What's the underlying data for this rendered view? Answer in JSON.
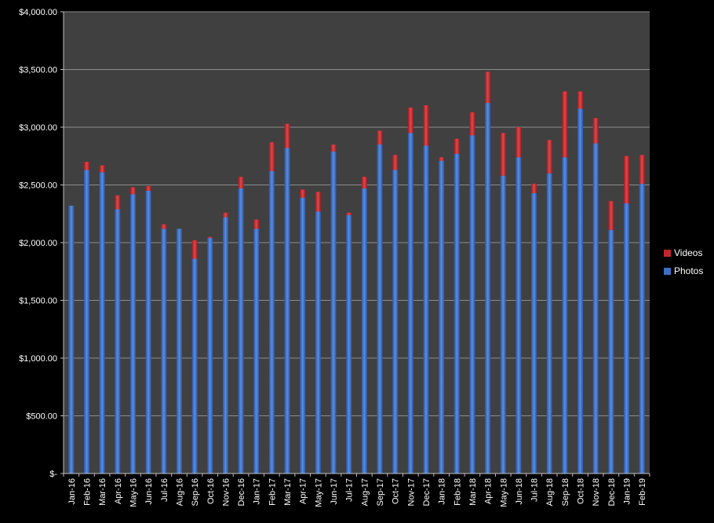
{
  "chart_data": {
    "type": "bar",
    "stacked": true,
    "title": "",
    "xlabel": "",
    "ylabel": "",
    "ylim": [
      0,
      4000
    ],
    "yticks": [
      0,
      500,
      1000,
      1500,
      2000,
      2500,
      3000,
      3500,
      4000
    ],
    "ytick_labels": [
      "$-",
      "$500.00",
      "$1,000.00",
      "$1,500.00",
      "$2,000.00",
      "$2,500.00",
      "$3,000.00",
      "$3,500.00",
      "$4,000.00"
    ],
    "grid": true,
    "legend_position": "right",
    "categories": [
      "Jan-16",
      "Feb-16",
      "Mar-16",
      "Apr-16",
      "May-16",
      "Jun-16",
      "Jul-16",
      "Aug-16",
      "Sep-16",
      "Oct-16",
      "Nov-16",
      "Dec-16",
      "Jan-17",
      "Feb-17",
      "Mar-17",
      "Apr-17",
      "May-17",
      "Jun-17",
      "Jul-17",
      "Aug-17",
      "Sep-17",
      "Oct-17",
      "Nov-17",
      "Dec-17",
      "Jan-18",
      "Feb-18",
      "Mar-18",
      "Apr-18",
      "May-18",
      "Jun-18",
      "Jul-18",
      "Aug-18",
      "Sep-18",
      "Oct-18",
      "Nov-18",
      "Dec-18",
      "Jan-19",
      "Feb-19"
    ],
    "series": [
      {
        "name": "Photos",
        "color": "#3d6fc4",
        "values": [
          2320,
          2630,
          2610,
          2290,
          2420,
          2450,
          2120,
          2120,
          1860,
          2040,
          2220,
          2470,
          2120,
          2620,
          2820,
          2390,
          2270,
          2790,
          2240,
          2470,
          2850,
          2630,
          2950,
          2840,
          2710,
          2770,
          2930,
          3210,
          2580,
          2740,
          2430,
          2600,
          2740,
          3160,
          2860,
          2110,
          2340,
          2510
        ]
      },
      {
        "name": "Videos",
        "color": "#c0282d",
        "values": [
          0,
          70,
          60,
          120,
          60,
          40,
          40,
          0,
          160,
          10,
          40,
          100,
          80,
          250,
          210,
          70,
          170,
          60,
          20,
          100,
          120,
          130,
          220,
          350,
          30,
          130,
          200,
          270,
          370,
          260,
          80,
          290,
          570,
          150,
          220,
          250,
          410,
          250
        ]
      }
    ]
  }
}
